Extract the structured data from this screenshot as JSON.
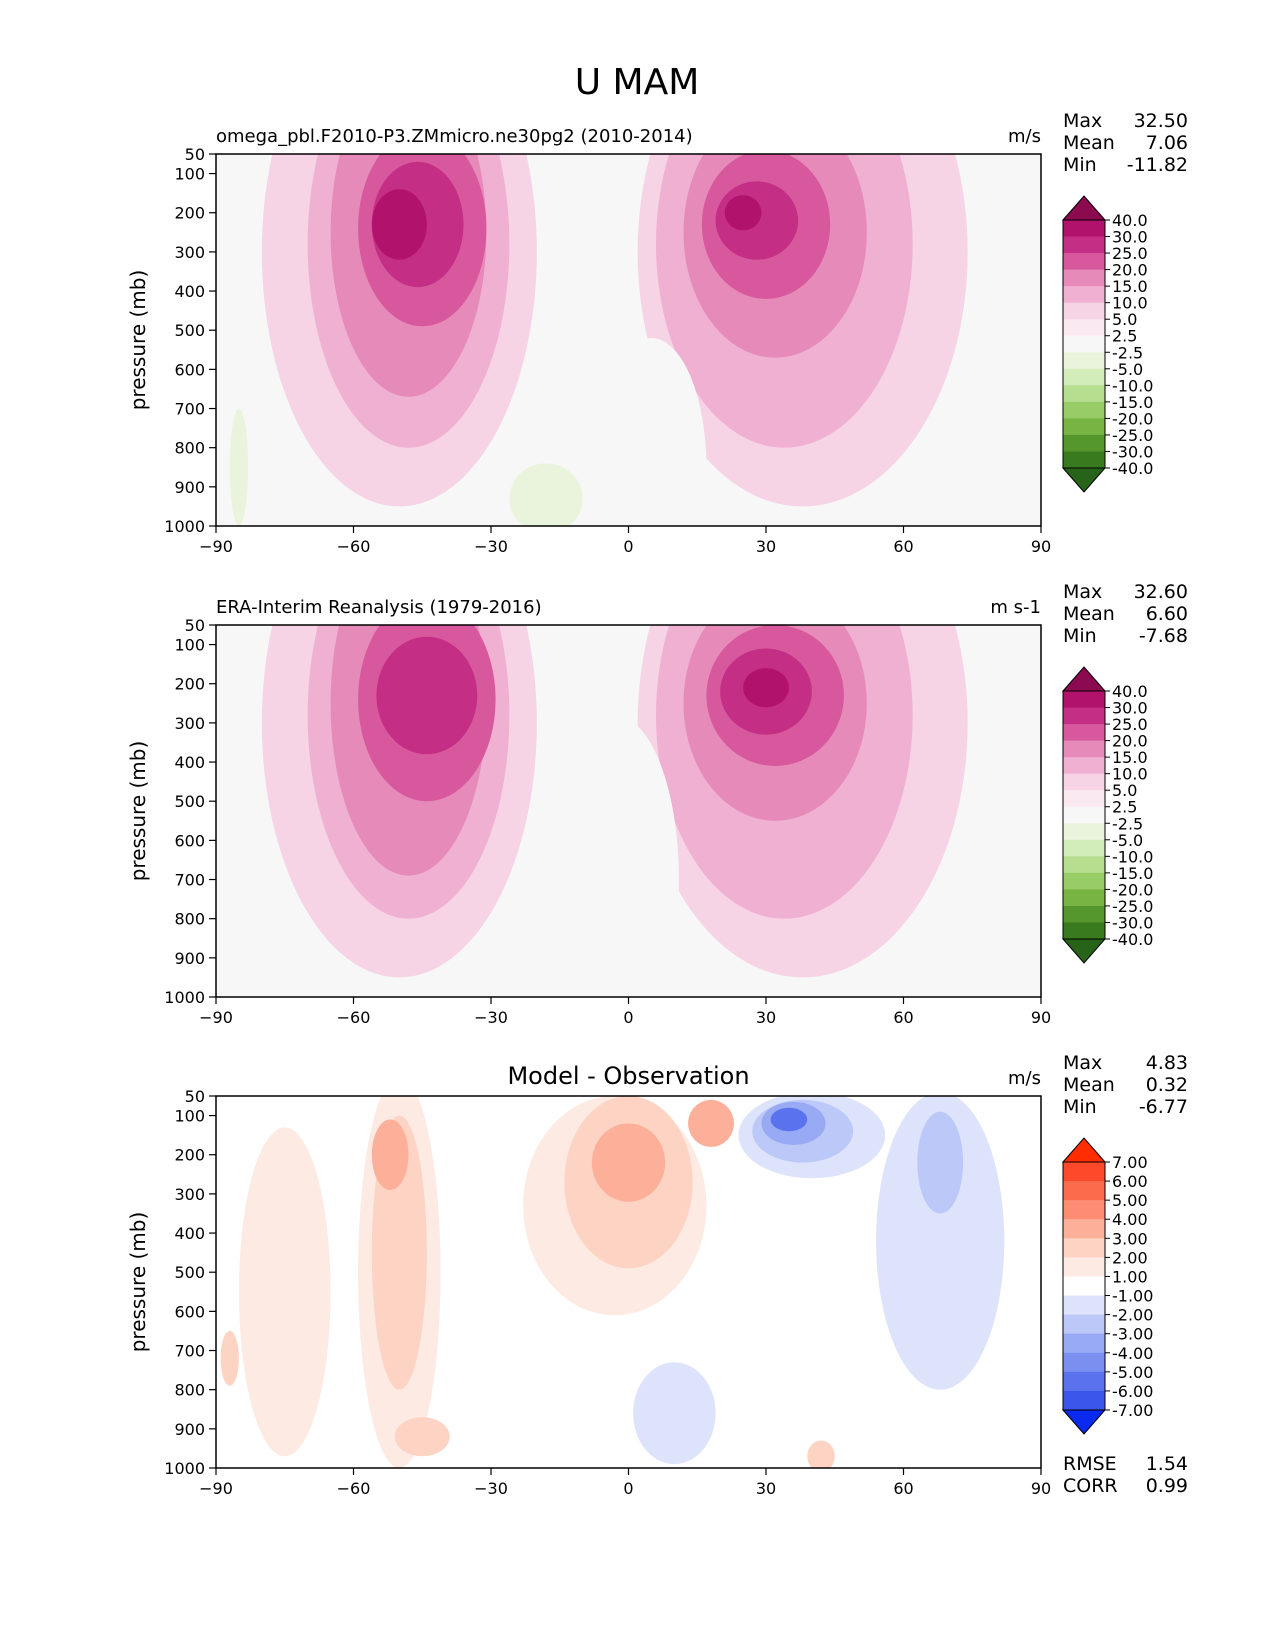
{
  "figure_title": "U MAM",
  "chart_data": [
    {
      "type": "contour",
      "title": "omega_pbl.F2010-P3.ZMmicro.ne30pg2 (2010-2014)",
      "units": "m/s",
      "ylabel": "pressure (mb)",
      "x_ticks": [
        "−90",
        "−60",
        "−30",
        "0",
        "30",
        "60",
        "90"
      ],
      "y_ticks": [
        "50",
        "100",
        "200",
        "300",
        "400",
        "500",
        "600",
        "700",
        "800",
        "900",
        "1000"
      ],
      "xlim": [
        -90,
        90
      ],
      "ylim": [
        1000,
        50
      ],
      "stats": [
        {
          "label": "Max",
          "value": "32.50"
        },
        {
          "label": "Mean",
          "value": "7.06"
        },
        {
          "label": "Min",
          "value": "-11.82"
        }
      ],
      "colorbar_labels": [
        "40.0",
        "30.0",
        "25.0",
        "20.0",
        "15.0",
        "10.0",
        "5.0",
        "2.5",
        "-2.5",
        "-5.0",
        "-10.0",
        "-15.0",
        "-20.0",
        "-25.0",
        "-30.0",
        "-40.0"
      ],
      "colorbar_colors": [
        "#8b0a50",
        "#b1126c",
        "#c42e84",
        "#d7589c",
        "#e68ab9",
        "#efb0d1",
        "#f6d3e5",
        "#fae9f1",
        "#f7f7f7",
        "#eaf4dd",
        "#d2ecba",
        "#b5de8f",
        "#98cc66",
        "#78b444",
        "#56972d",
        "#3a7a1e",
        "#276419"
      ],
      "blobs": [
        {
          "lat": -50,
          "p": 300,
          "rx": 30,
          "ry": 650,
          "value": 5
        },
        {
          "lat": 38,
          "p": 300,
          "rx": 36,
          "ry": 650,
          "value": 5
        },
        {
          "lat": -48,
          "p": 280,
          "rx": 22,
          "ry": 520,
          "value": 10
        },
        {
          "lat": 34,
          "p": 280,
          "rx": 28,
          "ry": 520,
          "value": 10
        },
        {
          "lat": -48,
          "p": 250,
          "rx": 17,
          "ry": 420,
          "value": 15
        },
        {
          "lat": 32,
          "p": 250,
          "rx": 20,
          "ry": 320,
          "value": 15
        },
        {
          "lat": -45,
          "p": 240,
          "rx": 14,
          "ry": 250,
          "value": 20
        },
        {
          "lat": 30,
          "p": 230,
          "rx": 14,
          "ry": 190,
          "value": 20
        },
        {
          "lat": -46,
          "p": 230,
          "rx": 10,
          "ry": 160,
          "value": 25
        },
        {
          "lat": 28,
          "p": 220,
          "rx": 9,
          "ry": 100,
          "value": 25
        },
        {
          "lat": -50,
          "p": 230,
          "rx": 6,
          "ry": 90,
          "value": 30
        },
        {
          "lat": 25,
          "p": 200,
          "rx": 4,
          "ry": 45,
          "value": 30
        },
        {
          "lat": 5,
          "p": 850,
          "rx": 12,
          "ry": 330,
          "value": -2.5
        },
        {
          "lat": -18,
          "p": 930,
          "rx": 8,
          "ry": 90,
          "value": -5
        },
        {
          "lat": -85,
          "p": 850,
          "rx": 2,
          "ry": 150,
          "value": -5
        }
      ]
    },
    {
      "type": "contour",
      "title": "ERA-Interim Reanalysis (1979-2016)",
      "units": "m s-1",
      "ylabel": "pressure (mb)",
      "x_ticks": [
        "−90",
        "−60",
        "−30",
        "0",
        "30",
        "60",
        "90"
      ],
      "y_ticks": [
        "50",
        "100",
        "200",
        "300",
        "400",
        "500",
        "600",
        "700",
        "800",
        "900",
        "1000"
      ],
      "xlim": [
        -90,
        90
      ],
      "ylim": [
        1000,
        50
      ],
      "stats": [
        {
          "label": "Max",
          "value": "32.60"
        },
        {
          "label": "Mean",
          "value": "6.60"
        },
        {
          "label": "Min",
          "value": "-7.68"
        }
      ],
      "colorbar_labels": [
        "40.0",
        "30.0",
        "25.0",
        "20.0",
        "15.0",
        "10.0",
        "5.0",
        "2.5",
        "-2.5",
        "-5.0",
        "-10.0",
        "-15.0",
        "-20.0",
        "-25.0",
        "-30.0",
        "-40.0"
      ],
      "colorbar_colors": [
        "#8b0a50",
        "#b1126c",
        "#c42e84",
        "#d7589c",
        "#e68ab9",
        "#efb0d1",
        "#f6d3e5",
        "#fae9f1",
        "#f7f7f7",
        "#eaf4dd",
        "#d2ecba",
        "#b5de8f",
        "#98cc66",
        "#78b444",
        "#56972d",
        "#3a7a1e",
        "#276419"
      ],
      "blobs": [
        {
          "lat": -50,
          "p": 300,
          "rx": 30,
          "ry": 650,
          "value": 5
        },
        {
          "lat": 38,
          "p": 300,
          "rx": 36,
          "ry": 650,
          "value": 5
        },
        {
          "lat": -48,
          "p": 280,
          "rx": 22,
          "ry": 520,
          "value": 10
        },
        {
          "lat": 34,
          "p": 280,
          "rx": 28,
          "ry": 520,
          "value": 10
        },
        {
          "lat": -48,
          "p": 250,
          "rx": 17,
          "ry": 440,
          "value": 15
        },
        {
          "lat": 32,
          "p": 250,
          "rx": 20,
          "ry": 300,
          "value": 15
        },
        {
          "lat": -44,
          "p": 240,
          "rx": 15,
          "ry": 260,
          "value": 20
        },
        {
          "lat": 32,
          "p": 230,
          "rx": 15,
          "ry": 180,
          "value": 20
        },
        {
          "lat": -44,
          "p": 230,
          "rx": 11,
          "ry": 150,
          "value": 25
        },
        {
          "lat": 30,
          "p": 220,
          "rx": 10,
          "ry": 110,
          "value": 25
        },
        {
          "lat": 30,
          "p": 210,
          "rx": 5,
          "ry": 50,
          "value": 30
        },
        {
          "lat": -3,
          "p": 700,
          "rx": 14,
          "ry": 420,
          "value": -2.5
        }
      ]
    },
    {
      "type": "contour",
      "title": "Model - Observation",
      "units": "m/s",
      "ylabel": "pressure (mb)",
      "x_ticks": [
        "−90",
        "−60",
        "−30",
        "0",
        "30",
        "60",
        "90"
      ],
      "y_ticks": [
        "50",
        "100",
        "200",
        "300",
        "400",
        "500",
        "600",
        "700",
        "800",
        "900",
        "1000"
      ],
      "xlim": [
        -90,
        90
      ],
      "ylim": [
        1000,
        50
      ],
      "stats": [
        {
          "label": "Max",
          "value": "4.83"
        },
        {
          "label": "Mean",
          "value": "0.32"
        },
        {
          "label": "Min",
          "value": "-6.77"
        }
      ],
      "footer_stats": [
        {
          "label": "RMSE",
          "value": "1.54"
        },
        {
          "label": "CORR",
          "value": "0.99"
        }
      ],
      "colorbar_labels": [
        "7.00",
        "6.00",
        "5.00",
        "4.00",
        "3.00",
        "2.00",
        "1.00",
        "-1.00",
        "-2.00",
        "-3.00",
        "-4.00",
        "-5.00",
        "-6.00",
        "-7.00"
      ],
      "colorbar_colors": [
        "#ff2d00",
        "#fe4a2a",
        "#fd6b4d",
        "#fc8d73",
        "#fcb09a",
        "#fdd3c3",
        "#fdeae2",
        "#ffffff",
        "#dde3fb",
        "#bcc8f8",
        "#99aaf4",
        "#7b8ff1",
        "#5a72ee",
        "#3a56eb",
        "#0a2af0"
      ],
      "blobs": [
        {
          "lat": -75,
          "p": 550,
          "rx": 10,
          "ry": 420,
          "value": 1.5
        },
        {
          "lat": -50,
          "p": 500,
          "rx": 9,
          "ry": 500,
          "value": 1.5
        },
        {
          "lat": -50,
          "p": 450,
          "rx": 6,
          "ry": 350,
          "value": 2.5
        },
        {
          "lat": -52,
          "p": 200,
          "rx": 4,
          "ry": 90,
          "value": 3.5
        },
        {
          "lat": -87,
          "p": 720,
          "rx": 2,
          "ry": 70,
          "value": 2.5
        },
        {
          "lat": -45,
          "p": 920,
          "rx": 6,
          "ry": 50,
          "value": 2.5
        },
        {
          "lat": -3,
          "p": 330,
          "rx": 20,
          "ry": 280,
          "value": 1.5
        },
        {
          "lat": 0,
          "p": 270,
          "rx": 14,
          "ry": 220,
          "value": 2.5
        },
        {
          "lat": 0,
          "p": 220,
          "rx": 8,
          "ry": 100,
          "value": 3.5
        },
        {
          "lat": 18,
          "p": 120,
          "rx": 5,
          "ry": 60,
          "value": 3.5
        },
        {
          "lat": 42,
          "p": 970,
          "rx": 3,
          "ry": 40,
          "value": 2.5
        },
        {
          "lat": 68,
          "p": 420,
          "rx": 14,
          "ry": 380,
          "value": -1.5
        },
        {
          "lat": 40,
          "p": 150,
          "rx": 16,
          "ry": 110,
          "value": -1.5
        },
        {
          "lat": 38,
          "p": 140,
          "rx": 11,
          "ry": 80,
          "value": -2.5
        },
        {
          "lat": 36,
          "p": 120,
          "rx": 7,
          "ry": 55,
          "value": -3.5
        },
        {
          "lat": 35,
          "p": 110,
          "rx": 4,
          "ry": 30,
          "value": -5.5
        },
        {
          "lat": 68,
          "p": 220,
          "rx": 5,
          "ry": 130,
          "value": -2.5
        },
        {
          "lat": 10,
          "p": 860,
          "rx": 9,
          "ry": 130,
          "value": -1.5
        }
      ]
    }
  ]
}
